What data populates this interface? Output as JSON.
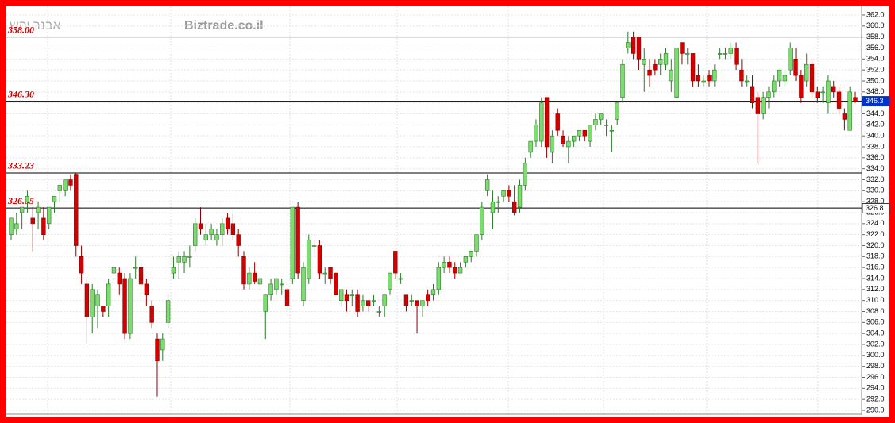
{
  "chart_data": {
    "type": "candlestick",
    "source": "Biztrade.co.il",
    "author": "אבנר יהש",
    "up_color": "#7ddc6e",
    "down_color": "#d40000",
    "ylim": [
      290,
      362
    ],
    "yticks": [
      {
        "value": 290,
        "label": "290.0"
      },
      {
        "value": 292,
        "label": "292.0"
      },
      {
        "value": 294,
        "label": "294.0"
      },
      {
        "value": 296,
        "label": "296.0"
      },
      {
        "value": 298,
        "label": "298.0"
      },
      {
        "value": 300,
        "label": "300.0"
      },
      {
        "value": 302,
        "label": "302.0"
      },
      {
        "value": 304,
        "label": "304.0"
      },
      {
        "value": 306,
        "label": "306.0"
      },
      {
        "value": 308,
        "label": "308.0"
      },
      {
        "value": 310,
        "label": "310.0"
      },
      {
        "value": 312,
        "label": "312.0"
      },
      {
        "value": 314,
        "label": "314.0"
      },
      {
        "value": 316,
        "label": "316.0"
      },
      {
        "value": 318,
        "label": "318.0"
      },
      {
        "value": 320,
        "label": "320.0"
      },
      {
        "value": 322,
        "label": "322.0"
      },
      {
        "value": 324,
        "label": "324.0"
      },
      {
        "value": 326,
        "label": "326.0"
      },
      {
        "value": 328,
        "label": "328.0"
      },
      {
        "value": 330,
        "label": "330.0"
      },
      {
        "value": 332,
        "label": "332.0"
      },
      {
        "value": 334,
        "label": "334.0"
      },
      {
        "value": 336,
        "label": "336.0"
      },
      {
        "value": 338,
        "label": "338.0"
      },
      {
        "value": 340,
        "label": "340.0"
      },
      {
        "value": 342,
        "label": "342.0"
      },
      {
        "value": 344,
        "label": "344.0"
      },
      {
        "value": 346,
        "label": "346.0"
      },
      {
        "value": 348,
        "label": "348.0"
      },
      {
        "value": 350,
        "label": "350.0"
      },
      {
        "value": 352,
        "label": "352.0"
      },
      {
        "value": 354,
        "label": "354.0"
      },
      {
        "value": 356,
        "label": "356.0"
      },
      {
        "value": 358,
        "label": "358.0"
      },
      {
        "value": 360,
        "label": "360.0"
      },
      {
        "value": 362,
        "label": "362.0"
      }
    ],
    "levels": [
      {
        "value": 358,
        "label": "358.00"
      },
      {
        "value": 346.3,
        "label": "346.30"
      },
      333.23,
      326.85
    ],
    "markers": [
      346.3,
      326.8
    ],
    "candles": [
      [
        322,
        325,
        321,
        325
      ],
      [
        323,
        326,
        322,
        324
      ],
      [
        326,
        327,
        323,
        327
      ],
      [
        328,
        330,
        326,
        329
      ],
      [
        325,
        327,
        319,
        324
      ],
      [
        326,
        328,
        323,
        327
      ],
      [
        325,
        327,
        321,
        322
      ],
      [
        324,
        327,
        323,
        327
      ],
      [
        328,
        329,
        326,
        329
      ],
      [
        330,
        331,
        328,
        331
      ],
      [
        330,
        332,
        329,
        332
      ],
      [
        332,
        333,
        330,
        331
      ],
      [
        333,
        333.2,
        318,
        320
      ],
      [
        318,
        320,
        313,
        315
      ],
      [
        313,
        314,
        302,
        307
      ],
      [
        307,
        313,
        304,
        312
      ],
      [
        309,
        312,
        305,
        311
      ],
      [
        309,
        309,
        307,
        308
      ],
      [
        309,
        314,
        307,
        313
      ],
      [
        315,
        317,
        313,
        316
      ],
      [
        315,
        316,
        311,
        313
      ],
      [
        314,
        315,
        303,
        304
      ],
      [
        304,
        315,
        303,
        314
      ],
      [
        316,
        318,
        314,
        316
      ],
      [
        316,
        317,
        311,
        313
      ],
      [
        313,
        314,
        309,
        311
      ],
      [
        309,
        310,
        305,
        306
      ],
      [
        303,
        304,
        292.5,
        299
      ],
      [
        301,
        304,
        299,
        303
      ],
      [
        306,
        311,
        305,
        310
      ],
      [
        315,
        318,
        314,
        316
      ],
      [
        317,
        319,
        314,
        318
      ],
      [
        317,
        319,
        315,
        318
      ],
      [
        318,
        320,
        316,
        318
      ],
      [
        320,
        325,
        319,
        324
      ],
      [
        324,
        327,
        322,
        323
      ],
      [
        321,
        324,
        320,
        322
      ],
      [
        322,
        324,
        321,
        323
      ],
      [
        321,
        323,
        320,
        322
      ],
      [
        322,
        325,
        320,
        324
      ],
      [
        325,
        326,
        322,
        323
      ],
      [
        324,
        326,
        321,
        322
      ],
      [
        322,
        323,
        318,
        320
      ],
      [
        318,
        319,
        312,
        313
      ],
      [
        313,
        316,
        312,
        315
      ],
      [
        315,
        317,
        313,
        313.5
      ],
      [
        313,
        315,
        312,
        314
      ],
      [
        308,
        311,
        303,
        311
      ],
      [
        311,
        314,
        310,
        313
      ],
      [
        312,
        314,
        311,
        314
      ],
      [
        313,
        314,
        311,
        313
      ],
      [
        312,
        313,
        308,
        309
      ],
      [
        314,
        327,
        313,
        327
      ],
      [
        327,
        328,
        314,
        315
      ],
      [
        310,
        317,
        309,
        316
      ],
      [
        314,
        322,
        313,
        321
      ],
      [
        320,
        321,
        318,
        320
      ],
      [
        320,
        321,
        314,
        315
      ],
      [
        315,
        316,
        313,
        315
      ],
      [
        316,
        316,
        313,
        314
      ],
      [
        315,
        315,
        311,
        311
      ],
      [
        310,
        312,
        309,
        312
      ],
      [
        311,
        312,
        308,
        310
      ],
      [
        311,
        312,
        309,
        311
      ],
      [
        311,
        312,
        307,
        308
      ],
      [
        309,
        311,
        308,
        310
      ],
      [
        310,
        310,
        308,
        309
      ],
      [
        310,
        311,
        309,
        310
      ],
      [
        308,
        309,
        307,
        308
      ],
      [
        309,
        311,
        307,
        311
      ],
      [
        312,
        315,
        311,
        315
      ],
      [
        319,
        319,
        314,
        315
      ],
      [
        314,
        315,
        313,
        314
      ],
      [
        311,
        311,
        308,
        309
      ],
      [
        310,
        311,
        309,
        310
      ],
      [
        310,
        310,
        304,
        309
      ],
      [
        309,
        310,
        307,
        310
      ],
      [
        311,
        312,
        309,
        310
      ],
      [
        311,
        313,
        310,
        312
      ],
      [
        312,
        317,
        311,
        316
      ],
      [
        316,
        318,
        315,
        317
      ],
      [
        317,
        318,
        315,
        316
      ],
      [
        316,
        317,
        314,
        315
      ],
      [
        315,
        317,
        315,
        316
      ],
      [
        317,
        318,
        316,
        318
      ],
      [
        318,
        319,
        317,
        319
      ],
      [
        319,
        322,
        318,
        322
      ],
      [
        322,
        328,
        321,
        327
      ],
      [
        330,
        333,
        329,
        332
      ],
      [
        326,
        330,
        323,
        328
      ],
      [
        328,
        329,
        326,
        328
      ],
      [
        329,
        330,
        328,
        330
      ],
      [
        330,
        331,
        328,
        329
      ],
      [
        328,
        331,
        325.5,
        326
      ],
      [
        327,
        332,
        326,
        331
      ],
      [
        331,
        336,
        330,
        335
      ],
      [
        337,
        339,
        336,
        339
      ],
      [
        339,
        343,
        338,
        342
      ],
      [
        339,
        347,
        338,
        346
      ],
      [
        347,
        347,
        336,
        338
      ],
      [
        337,
        341,
        335,
        340
      ],
      [
        344,
        345,
        340,
        341
      ],
      [
        340,
        341,
        338,
        338.5
      ],
      [
        338,
        340,
        335,
        339
      ],
      [
        339,
        340,
        338,
        340
      ],
      [
        340,
        341,
        339,
        341
      ],
      [
        341,
        341,
        339,
        340
      ],
      [
        339,
        342,
        338,
        342
      ],
      [
        342,
        344,
        341,
        343
      ],
      [
        343,
        344,
        342,
        344
      ],
      [
        342,
        343,
        340,
        342
      ],
      [
        341,
        342,
        337,
        341
      ],
      [
        343,
        346,
        342,
        346
      ],
      [
        347,
        354,
        346,
        353
      ],
      [
        356,
        359,
        355,
        357
      ],
      [
        358,
        359,
        354,
        355
      ],
      [
        358,
        358,
        352,
        354
      ],
      [
        353,
        356,
        348,
        354
      ],
      [
        352,
        354,
        349,
        351
      ],
      [
        353,
        354,
        351,
        352
      ],
      [
        353,
        355,
        351,
        354
      ],
      [
        353,
        356,
        352,
        355
      ],
      [
        350,
        354,
        348,
        352
      ],
      [
        347,
        356,
        347,
        356
      ],
      [
        357,
        357,
        353,
        355
      ],
      [
        355,
        356,
        353,
        355
      ],
      [
        355,
        355,
        349,
        350
      ],
      [
        351,
        353,
        349,
        350
      ],
      [
        350,
        351,
        349,
        350
      ],
      [
        351,
        352,
        349,
        350
      ],
      [
        350,
        353,
        349,
        352
      ],
      [
        355,
        356,
        354,
        355
      ],
      [
        355,
        356,
        354,
        355
      ],
      [
        355,
        357,
        354,
        356
      ],
      [
        356,
        357,
        352,
        353
      ],
      [
        352,
        354,
        349,
        350
      ],
      [
        350,
        351,
        349,
        350
      ],
      [
        349,
        351,
        345,
        346
      ],
      [
        347,
        348,
        335,
        344
      ],
      [
        344,
        348,
        343,
        347
      ],
      [
        347,
        349,
        345,
        348
      ],
      [
        348,
        351,
        347,
        350
      ],
      [
        350,
        352,
        349,
        352
      ],
      [
        350,
        352,
        349,
        351
      ],
      [
        352,
        357,
        351,
        356
      ],
      [
        354,
        356,
        350,
        351
      ],
      [
        351,
        352,
        346,
        347
      ],
      [
        350,
        355,
        349,
        353
      ],
      [
        353,
        354,
        347,
        348
      ],
      [
        348,
        349,
        346,
        347
      ],
      [
        348,
        349,
        346,
        348
      ],
      [
        346,
        351,
        344,
        350
      ],
      [
        349,
        350,
        347,
        348
      ],
      [
        348,
        349,
        344,
        345
      ],
      [
        344,
        345,
        341,
        343
      ],
      [
        341,
        349,
        341,
        348
      ],
      [
        347,
        348,
        346,
        346.3
      ]
    ]
  }
}
